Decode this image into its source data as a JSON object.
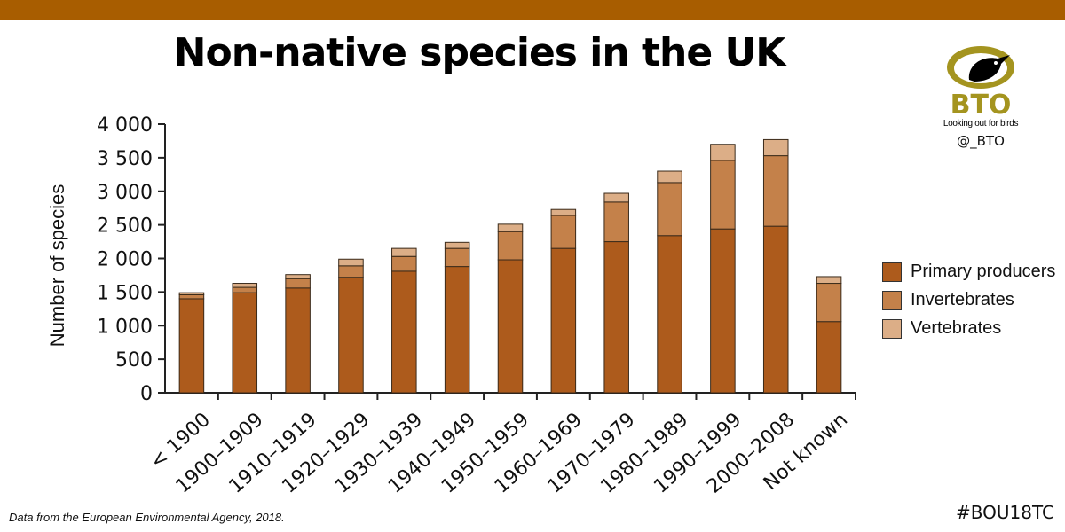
{
  "header": {
    "title": "Non-native species in the UK",
    "band_color": "#a85d00"
  },
  "logo": {
    "name": "BTO",
    "tagline": "Looking out for birds",
    "handle": "@_BTO"
  },
  "footer": {
    "source": "Data from the European Environmental Agency, 2018.",
    "hashtag": "#BOU18TC"
  },
  "legend": [
    {
      "label": "Primary producers",
      "color": "#ad5b1c"
    },
    {
      "label": "Invertebrates",
      "color": "#c4814a"
    },
    {
      "label": "Vertebrates",
      "color": "#dcae87"
    }
  ],
  "chart_data": {
    "type": "bar",
    "stacked": true,
    "title": "Non-native species in the UK",
    "ylabel": "Number of species",
    "xlabel": "",
    "ylim": [
      0,
      4000
    ],
    "yticks": [
      0,
      500,
      1000,
      1500,
      2000,
      2500,
      3000,
      3500,
      4000
    ],
    "ytick_labels": [
      "0",
      "500",
      "1 000",
      "1 500",
      "2 000",
      "2 500",
      "3 000",
      "3 500",
      "4 000"
    ],
    "categories": [
      "< 1900",
      "1900–1909",
      "1910–1919",
      "1920–1929",
      "1930–1939",
      "1940–1949",
      "1950–1959",
      "1960–1969",
      "1970–1979",
      "1980–1989",
      "1990–1999",
      "2000–2008",
      "Not known"
    ],
    "series": [
      {
        "name": "Primary producers",
        "values": [
          1400,
          1490,
          1560,
          1720,
          1810,
          1880,
          1980,
          2150,
          2250,
          2340,
          2440,
          2480,
          1060
        ]
      },
      {
        "name": "Invertebrates",
        "values": [
          60,
          80,
          140,
          170,
          220,
          270,
          420,
          490,
          590,
          790,
          1020,
          1050,
          570
        ]
      },
      {
        "name": "Vertebrates",
        "values": [
          30,
          60,
          60,
          100,
          120,
          90,
          110,
          90,
          130,
          170,
          240,
          240,
          100
        ]
      }
    ],
    "grid": false,
    "legend_position": "right"
  }
}
